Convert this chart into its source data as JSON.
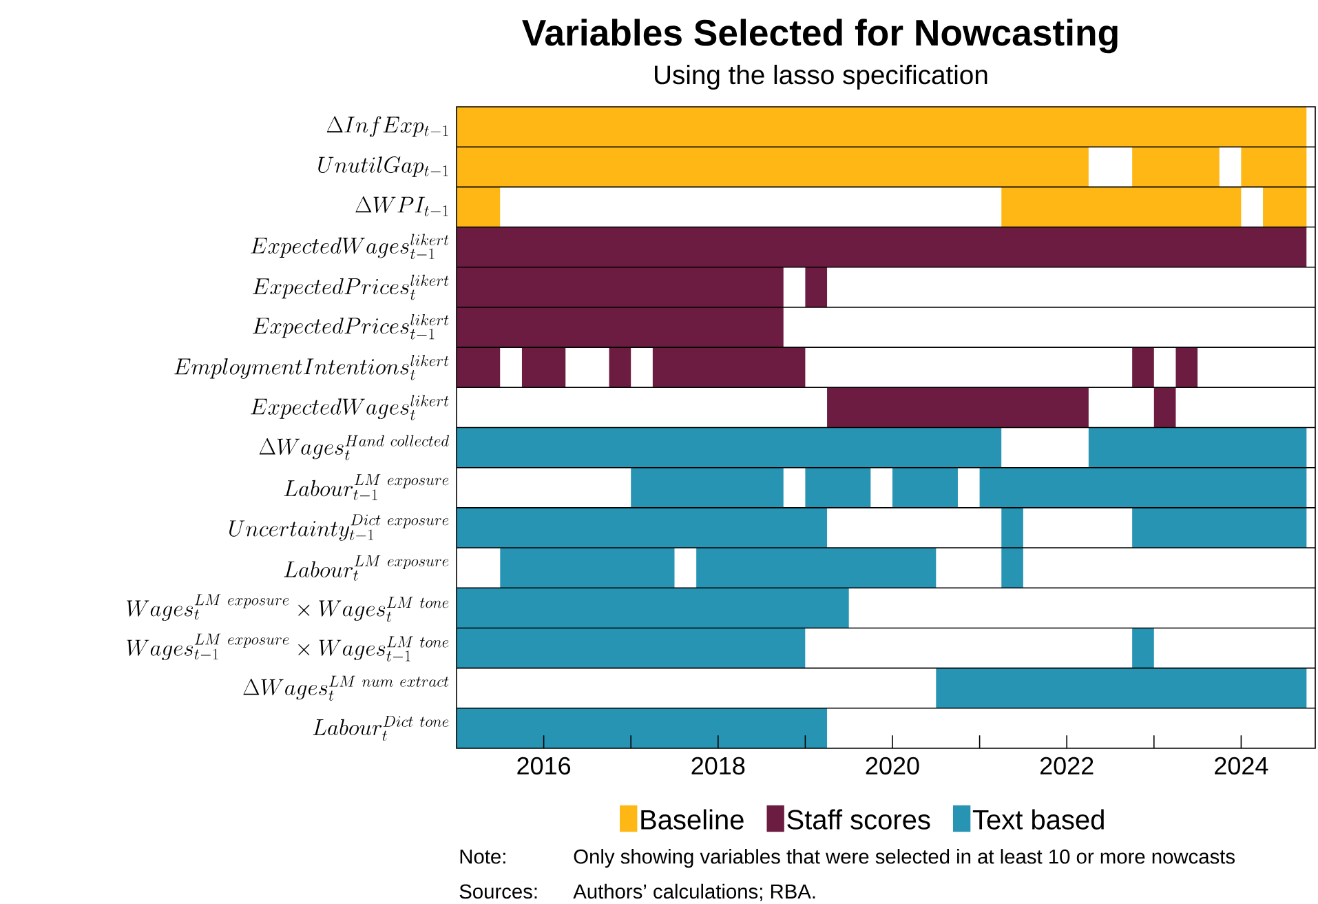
{
  "chart_data": {
    "type": "bar",
    "orientation": "horizontal",
    "title": "Variables Selected for Nowcasting",
    "subtitle": "Using the lasso specification",
    "categories": [
      "\\Delta InfExp_{t-1}",
      "UnutilGap_{t-1}",
      "\\Delta WPI_{t-1}",
      "ExpectedWages_{t-1}^{likert}",
      "ExpectedPrices_{t}^{likert}",
      "ExpectedPrices_{t-1}^{likert}",
      "EmploymentIntentions_{t}^{likert}",
      "ExpectedWages_{t}^{likert}",
      "\\Delta Wages_{t}^{Hand\\ collected}",
      "Labour_{t-1}^{LM\\ exposure}",
      "Uncertainty_{t-1}^{Dict\\ exposure}",
      "Labour_{t}^{LM\\ exposure}",
      "Wages_{t}^{LM\\ exposure} \\times Wages_{t}^{LM\\ tone}",
      "Wages_{t-1}^{LM\\ exposure} \\times Wages_{t-1}^{LM\\ tone}",
      "\\Delta Wages_{t}^{LM\\ num\\ extract}",
      "Labour_{t}^{Dict\\ tone}"
    ],
    "series": [
      {
        "name": "Baseline",
        "color": "#feb715",
        "base": [
          2015,
          2015,
          2015,
          null,
          null,
          null,
          null,
          null,
          null,
          null,
          null,
          null,
          null,
          null,
          null,
          null
        ],
        "values": [
          9.75,
          7.25,
          0.5,
          null,
          null,
          null,
          null,
          null,
          null,
          null,
          null,
          null,
          null,
          null,
          null,
          null
        ]
      },
      {
        "color": "#feb715",
        "base": [
          null,
          2022.75,
          2021.25,
          null,
          null,
          null,
          null,
          null,
          null,
          null,
          null,
          null,
          null,
          null,
          null,
          null
        ],
        "values": [
          null,
          1,
          2.75,
          null,
          null,
          null,
          null,
          null,
          null,
          null,
          null,
          null,
          null,
          null,
          null,
          null
        ]
      },
      {
        "color": "#feb715",
        "base": [
          null,
          2024,
          2024.25,
          null,
          null,
          null,
          null,
          null,
          null,
          null,
          null,
          null,
          null,
          null,
          null,
          null
        ],
        "values": [
          null,
          0.75,
          0.5,
          null,
          null,
          null,
          null,
          null,
          null,
          null,
          null,
          null,
          null,
          null,
          null,
          null
        ]
      },
      {
        "name": "Staff scores",
        "color": "#6c1c40",
        "base": [
          null,
          null,
          null,
          2015,
          2015,
          2015,
          2015,
          2019.25,
          null,
          null,
          null,
          null,
          null,
          null,
          null,
          null
        ],
        "values": [
          null,
          null,
          null,
          9.75,
          3.75,
          3.75,
          0.5,
          3,
          null,
          null,
          null,
          null,
          null,
          null,
          null,
          null
        ]
      },
      {
        "color": "#6c1c40",
        "base": [
          null,
          null,
          null,
          null,
          2019,
          null,
          2015.75,
          2023,
          null,
          null,
          null,
          null,
          null,
          null,
          null,
          null
        ],
        "values": [
          null,
          null,
          null,
          null,
          0.25,
          null,
          0.5,
          0.25,
          null,
          null,
          null,
          null,
          null,
          null,
          null,
          null
        ]
      },
      {
        "color": "#6c1c40",
        "base": [
          null,
          null,
          null,
          null,
          null,
          null,
          2016.75,
          null,
          null,
          null,
          null,
          null,
          null,
          null,
          null,
          null
        ],
        "values": [
          null,
          null,
          null,
          null,
          null,
          null,
          0.25,
          null,
          null,
          null,
          null,
          null,
          null,
          null,
          null,
          null
        ]
      },
      {
        "color": "#6c1c40",
        "base": [
          null,
          null,
          null,
          null,
          null,
          null,
          2017.25,
          null,
          null,
          null,
          null,
          null,
          null,
          null,
          null,
          null
        ],
        "values": [
          null,
          null,
          null,
          null,
          null,
          null,
          1.75,
          null,
          null,
          null,
          null,
          null,
          null,
          null,
          null,
          null
        ]
      },
      {
        "color": "#6c1c40",
        "base": [
          null,
          null,
          null,
          null,
          null,
          null,
          2022.75,
          null,
          null,
          null,
          null,
          null,
          null,
          null,
          null,
          null
        ],
        "values": [
          null,
          null,
          null,
          null,
          null,
          null,
          0.25,
          null,
          null,
          null,
          null,
          null,
          null,
          null,
          null,
          null
        ]
      },
      {
        "color": "#6c1c40",
        "base": [
          null,
          null,
          null,
          null,
          null,
          null,
          2023.25,
          null,
          null,
          null,
          null,
          null,
          null,
          null,
          null,
          null
        ],
        "values": [
          null,
          null,
          null,
          null,
          null,
          null,
          0.25,
          null,
          null,
          null,
          null,
          null,
          null,
          null,
          null,
          null
        ]
      },
      {
        "name": "Text based",
        "color": "#2894b4",
        "base": [
          null,
          null,
          null,
          null,
          null,
          null,
          null,
          null,
          2015,
          2017,
          2015,
          2015.5,
          2015,
          2015,
          2020.5,
          2015
        ],
        "values": [
          null,
          null,
          null,
          null,
          null,
          null,
          null,
          null,
          6.25,
          1.75,
          4.25,
          2,
          4.5,
          4,
          4.25,
          4.25
        ]
      },
      {
        "color": "#2894b4",
        "base": [
          null,
          null,
          null,
          null,
          null,
          null,
          null,
          null,
          2022.25,
          2019,
          2021.25,
          2017.75,
          null,
          2022.75,
          null,
          null
        ],
        "values": [
          null,
          null,
          null,
          null,
          null,
          null,
          null,
          null,
          2.5,
          0.75,
          0.25,
          2.75,
          null,
          0.25,
          null,
          null
        ]
      },
      {
        "color": "#2894b4",
        "base": [
          null,
          null,
          null,
          null,
          null,
          null,
          null,
          null,
          null,
          2020,
          2022.75,
          2021.25,
          null,
          null,
          null,
          null
        ],
        "values": [
          null,
          null,
          null,
          null,
          null,
          null,
          null,
          null,
          null,
          0.75,
          2,
          0.25,
          null,
          null,
          null,
          null
        ]
      },
      {
        "color": "#2894b4",
        "base": [
          null,
          null,
          null,
          null,
          null,
          null,
          null,
          null,
          null,
          2021,
          null,
          null,
          null,
          null,
          null,
          null
        ],
        "values": [
          null,
          null,
          null,
          null,
          null,
          null,
          null,
          null,
          null,
          3.75,
          null,
          null,
          null,
          null,
          null,
          null
        ]
      }
    ],
    "xlim": [
      2015,
      2024.85
    ],
    "xticks": [
      2016,
      2018,
      2020,
      2022,
      2024
    ],
    "grid": "y",
    "legend": "bottom",
    "annotations": [
      "Note:",
      "Only showing variables that were selected in at least 10 or more nowcasts",
      "Sources:",
      "Authors’ calculations; RBA."
    ]
  }
}
